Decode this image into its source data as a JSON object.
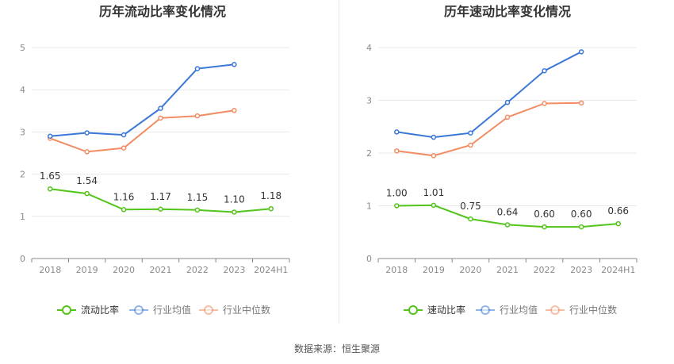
{
  "source_note": "数据来源：恒生聚源",
  "colors": {
    "company": "#52c41a",
    "industry_avg": "#3a78d8",
    "industry_median": "#f28c62",
    "grid": "#e9e9e9",
    "axis": "#888888",
    "tick_text": "#8a8a8a",
    "label_text": "#333333"
  },
  "chart_data": [
    {
      "type": "line",
      "title": "历年流动比率变化情况",
      "categories": [
        "2018",
        "2019",
        "2020",
        "2021",
        "2022",
        "2023",
        "2024H1"
      ],
      "ylim": [
        0,
        5
      ],
      "yticks": [
        "0",
        "1",
        "2",
        "3",
        "4",
        "5"
      ],
      "grid": true,
      "legend_position": "bottom",
      "series": [
        {
          "name": "流动比率",
          "values": [
            1.65,
            1.54,
            1.16,
            1.17,
            1.15,
            1.1,
            1.18
          ],
          "labels": [
            "1.65",
            "1.54",
            "1.16",
            "1.17",
            "1.15",
            "1.10",
            "1.18"
          ]
        },
        {
          "name": "行业均值",
          "values": [
            2.9,
            2.98,
            2.93,
            3.56,
            4.5,
            4.6,
            null
          ]
        },
        {
          "name": "行业中位数",
          "values": [
            2.85,
            2.53,
            2.62,
            3.33,
            3.38,
            3.51,
            null
          ]
        }
      ]
    },
    {
      "type": "line",
      "title": "历年速动比率变化情况",
      "categories": [
        "2018",
        "2019",
        "2020",
        "2021",
        "2022",
        "2023",
        "2024H1"
      ],
      "ylim": [
        0,
        4
      ],
      "yticks": [
        "0",
        "1",
        "2",
        "3",
        "4"
      ],
      "grid": true,
      "legend_position": "bottom",
      "series": [
        {
          "name": "速动比率",
          "values": [
            1.0,
            1.01,
            0.75,
            0.64,
            0.6,
            0.6,
            0.66
          ],
          "labels": [
            "1.00",
            "1.01",
            "0.75",
            "0.64",
            "0.60",
            "0.60",
            "0.66"
          ]
        },
        {
          "name": "行业均值",
          "values": [
            2.4,
            2.3,
            2.38,
            2.96,
            3.56,
            3.92,
            null
          ]
        },
        {
          "name": "行业中位数",
          "values": [
            2.04,
            1.95,
            2.15,
            2.68,
            2.94,
            2.95,
            null
          ]
        }
      ]
    }
  ]
}
